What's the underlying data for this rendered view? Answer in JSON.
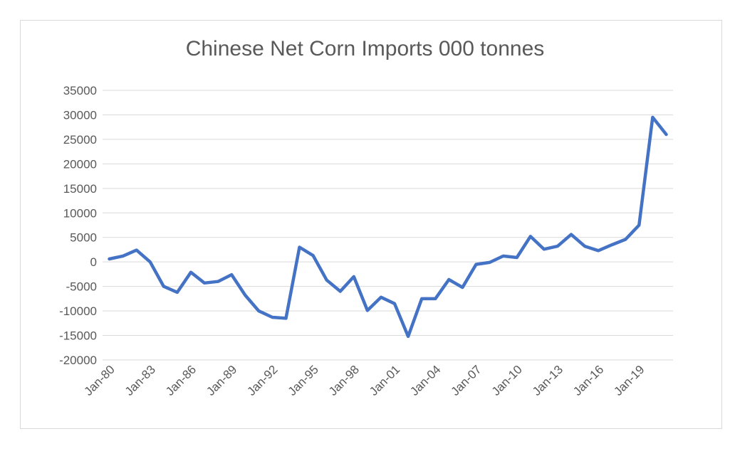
{
  "chart_data": {
    "type": "line",
    "title": "Chinese Net Corn Imports 000 tonnes",
    "xlabel": "",
    "ylabel": "",
    "ylim": [
      -20000,
      35000
    ],
    "yticks": [
      35000,
      30000,
      25000,
      20000,
      15000,
      10000,
      5000,
      0,
      -5000,
      -10000,
      -15000,
      -20000
    ],
    "xticks": [
      "Jan-80",
      "Jan-83",
      "Jan-86",
      "Jan-89",
      "Jan-92",
      "Jan-95",
      "Jan-98",
      "Jan-01",
      "Jan-04",
      "Jan-07",
      "Jan-10",
      "Jan-13",
      "Jan-16",
      "Jan-19"
    ],
    "x": [
      "Jan-80",
      "Jan-81",
      "Jan-82",
      "Jan-83",
      "Jan-84",
      "Jan-85",
      "Jan-86",
      "Jan-87",
      "Jan-88",
      "Jan-89",
      "Jan-90",
      "Jan-91",
      "Jan-92",
      "Jan-93",
      "Jan-94",
      "Jan-95",
      "Jan-96",
      "Jan-97",
      "Jan-98",
      "Jan-99",
      "Jan-00",
      "Jan-01",
      "Jan-02",
      "Jan-03",
      "Jan-04",
      "Jan-05",
      "Jan-06",
      "Jan-07",
      "Jan-08",
      "Jan-09",
      "Jan-10",
      "Jan-11",
      "Jan-12",
      "Jan-13",
      "Jan-14",
      "Jan-15",
      "Jan-16",
      "Jan-17",
      "Jan-18",
      "Jan-19",
      "Jan-20",
      "Jan-21"
    ],
    "series": [
      {
        "values": [
          600,
          1200,
          2400,
          0,
          -5000,
          -6200,
          -2100,
          -4300,
          -4000,
          -2600,
          -6800,
          -10000,
          -11300,
          -11500,
          3000,
          1300,
          -3700,
          -6000,
          -3000,
          -9900,
          -7200,
          -8500,
          -15200,
          -7500,
          -7500,
          -3600,
          -5200,
          -500,
          -100,
          1200,
          900,
          5200,
          2600,
          3200,
          5600,
          3200,
          2300,
          3500,
          4600,
          7500,
          29500,
          26000
        ],
        "color": "#4472c4"
      }
    ],
    "grid": true,
    "legend": "none"
  }
}
